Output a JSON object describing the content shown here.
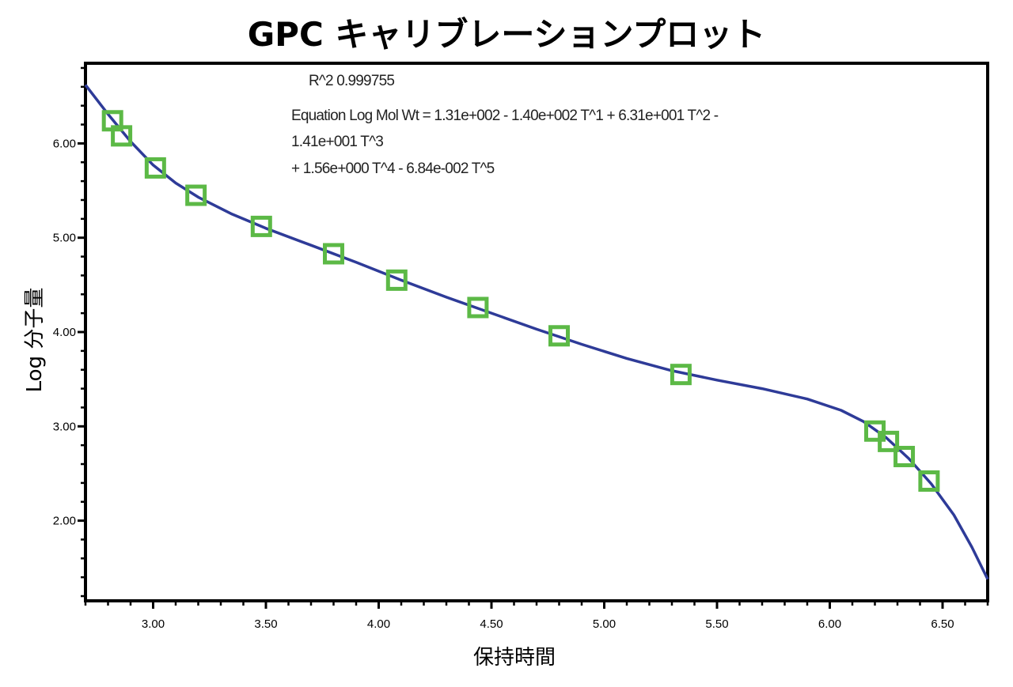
{
  "chart_data": {
    "type": "scatter",
    "title": "GPC キャリブレーションプロット",
    "xlabel": "保持時間",
    "ylabel": "Log 分子量",
    "xlim": [
      2.7,
      6.7
    ],
    "ylim": [
      1.15,
      6.85
    ],
    "xticks": [
      3.0,
      3.5,
      4.0,
      4.5,
      5.0,
      5.5,
      6.0,
      6.5
    ],
    "xtick_labels": [
      "3.00",
      "3.50",
      "4.00",
      "4.50",
      "5.00",
      "5.50",
      "6.00",
      "6.50"
    ],
    "yticks": [
      2.0,
      3.0,
      4.0,
      5.0,
      6.0
    ],
    "ytick_labels": [
      "2.00",
      "3.00",
      "4.00",
      "5.00",
      "6.00"
    ],
    "grid": false,
    "series": [
      {
        "kind": "points",
        "marker": "square",
        "color": "#5cb946",
        "points": [
          {
            "x": 2.82,
            "y": 6.24
          },
          {
            "x": 2.86,
            "y": 6.08
          },
          {
            "x": 3.01,
            "y": 5.74
          },
          {
            "x": 3.19,
            "y": 5.45
          },
          {
            "x": 3.48,
            "y": 5.12
          },
          {
            "x": 3.8,
            "y": 4.83
          },
          {
            "x": 4.08,
            "y": 4.55
          },
          {
            "x": 4.44,
            "y": 4.26
          },
          {
            "x": 4.8,
            "y": 3.96
          },
          {
            "x": 5.34,
            "y": 3.55
          },
          {
            "x": 6.2,
            "y": 2.95
          },
          {
            "x": 6.26,
            "y": 2.84
          },
          {
            "x": 6.33,
            "y": 2.68
          },
          {
            "x": 6.44,
            "y": 2.42
          }
        ]
      },
      {
        "kind": "fit-line",
        "color": "#2e3b98",
        "points": [
          {
            "x": 2.7,
            "y": 6.62
          },
          {
            "x": 2.8,
            "y": 6.31
          },
          {
            "x": 2.9,
            "y": 6.02
          },
          {
            "x": 3.0,
            "y": 5.77
          },
          {
            "x": 3.1,
            "y": 5.58
          },
          {
            "x": 3.2,
            "y": 5.43
          },
          {
            "x": 3.35,
            "y": 5.25
          },
          {
            "x": 3.5,
            "y": 5.1
          },
          {
            "x": 3.7,
            "y": 4.92
          },
          {
            "x": 3.9,
            "y": 4.74
          },
          {
            "x": 4.1,
            "y": 4.55
          },
          {
            "x": 4.3,
            "y": 4.37
          },
          {
            "x": 4.5,
            "y": 4.2
          },
          {
            "x": 4.7,
            "y": 4.03
          },
          {
            "x": 4.9,
            "y": 3.87
          },
          {
            "x": 5.1,
            "y": 3.72
          },
          {
            "x": 5.3,
            "y": 3.59
          },
          {
            "x": 5.5,
            "y": 3.49
          },
          {
            "x": 5.7,
            "y": 3.4
          },
          {
            "x": 5.9,
            "y": 3.29
          },
          {
            "x": 6.05,
            "y": 3.17
          },
          {
            "x": 6.15,
            "y": 3.05
          },
          {
            "x": 6.25,
            "y": 2.88
          },
          {
            "x": 6.35,
            "y": 2.66
          },
          {
            "x": 6.45,
            "y": 2.39
          },
          {
            "x": 6.55,
            "y": 2.06
          },
          {
            "x": 6.63,
            "y": 1.72
          },
          {
            "x": 6.7,
            "y": 1.38
          }
        ]
      }
    ],
    "annotations": [
      "R^2 0.999755",
      "Equation Log Mol Wt = 1.31e+002 - 1.40e+002 T^1 + 6.31e+001 T^2 -",
      "1.41e+001 T^3",
      " + 1.56e+000 T^4 - 6.84e-002 T^5"
    ]
  }
}
